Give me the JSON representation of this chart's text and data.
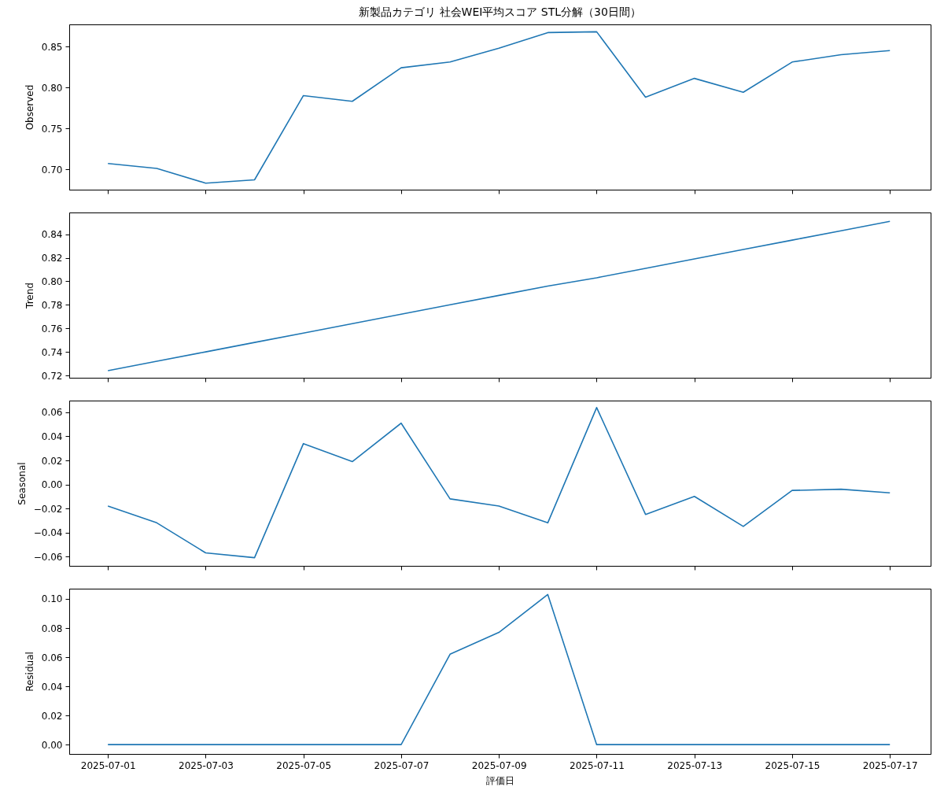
{
  "chart_data": [
    {
      "type": "line",
      "title": "新製品カテゴリ 社会WEI平均スコア STL分解（30日間）",
      "ylabel": "Observed",
      "tick_labels": "y",
      "x": [
        "2025-07-01",
        "2025-07-02",
        "2025-07-03",
        "2025-07-04",
        "2025-07-05",
        "2025-07-06",
        "2025-07-07",
        "2025-07-08",
        "2025-07-09",
        "2025-07-10",
        "2025-07-11",
        "2025-07-12",
        "2025-07-13",
        "2025-07-14",
        "2025-07-15",
        "2025-07-16",
        "2025-07-17"
      ],
      "series": [
        {
          "color": "#1f77b4",
          "values": [
            0.707,
            0.701,
            0.683,
            0.687,
            0.79,
            0.783,
            0.824,
            0.831,
            0.848,
            0.867,
            0.868,
            0.788,
            0.811,
            0.794,
            0.831,
            0.84,
            0.845
          ]
        }
      ],
      "xlim": [
        "2025-06-30T05:00",
        "2025-07-17T20:00"
      ],
      "xticks": [
        "2025-07-01",
        "2025-07-03",
        "2025-07-05",
        "2025-07-07",
        "2025-07-09",
        "2025-07-11",
        "2025-07-13",
        "2025-07-15",
        "2025-07-17"
      ],
      "ylim": [
        0.675,
        0.877
      ],
      "yticks": [
        {
          "value": 0.7,
          "label": "0.70"
        },
        0.75,
        {
          "value": 0.8,
          "label": "0.80"
        },
        0.85
      ]
    },
    {
      "type": "line",
      "ylabel": "Trend",
      "tick_labels": "y",
      "x": [
        "2025-07-01",
        "2025-07-02",
        "2025-07-03",
        "2025-07-04",
        "2025-07-05",
        "2025-07-06",
        "2025-07-07",
        "2025-07-08",
        "2025-07-09",
        "2025-07-10",
        "2025-07-11",
        "2025-07-12",
        "2025-07-13",
        "2025-07-14",
        "2025-07-15",
        "2025-07-16",
        "2025-07-17"
      ],
      "series": [
        {
          "color": "#1f77b4",
          "values": [
            0.724,
            0.732,
            0.74,
            0.748,
            0.756,
            0.764,
            0.772,
            0.78,
            0.788,
            0.796,
            0.803,
            0.811,
            0.819,
            0.827,
            0.835,
            0.843,
            0.851
          ]
        }
      ],
      "xlim": [
        "2025-06-30T05:00",
        "2025-07-17T20:00"
      ],
      "xticks": [
        "2025-07-01",
        "2025-07-03",
        "2025-07-05",
        "2025-07-07",
        "2025-07-09",
        "2025-07-11",
        "2025-07-13",
        "2025-07-15",
        "2025-07-17"
      ],
      "ylim": [
        0.718,
        0.8585
      ],
      "yticks": [
        0.72,
        0.74,
        0.76,
        0.78,
        {
          "value": 0.8,
          "label": "0.80"
        },
        0.82,
        0.84
      ]
    },
    {
      "type": "line",
      "ylabel": "Seasonal",
      "tick_labels": "y",
      "x": [
        "2025-07-01",
        "2025-07-02",
        "2025-07-03",
        "2025-07-04",
        "2025-07-05",
        "2025-07-06",
        "2025-07-07",
        "2025-07-08",
        "2025-07-09",
        "2025-07-10",
        "2025-07-11",
        "2025-07-12",
        "2025-07-13",
        "2025-07-14",
        "2025-07-15",
        "2025-07-16",
        "2025-07-17"
      ],
      "series": [
        {
          "color": "#1f77b4",
          "values": [
            -0.018,
            -0.032,
            -0.057,
            -0.061,
            0.034,
            0.019,
            0.051,
            -0.012,
            -0.018,
            -0.032,
            0.064,
            -0.025,
            -0.01,
            -0.035,
            -0.005,
            -0.004,
            -0.007
          ]
        }
      ],
      "xlim": [
        "2025-06-30T05:00",
        "2025-07-17T20:00"
      ],
      "xticks": [
        "2025-07-01",
        "2025-07-03",
        "2025-07-05",
        "2025-07-07",
        "2025-07-09",
        "2025-07-11",
        "2025-07-13",
        "2025-07-15",
        "2025-07-17"
      ],
      "ylim": [
        -0.0678,
        0.0698
      ],
      "yticks": [
        {
          "value": -0.06,
          "label": "−0.06"
        },
        {
          "value": -0.04,
          "label": "−0.04"
        },
        {
          "value": -0.02,
          "label": "−0.02"
        },
        {
          "value": 0,
          "label": "0.00"
        },
        0.02,
        0.04,
        0.06
      ]
    },
    {
      "type": "line",
      "ylabel": "Residual",
      "xlabel": "評価日",
      "x": [
        "2025-07-01",
        "2025-07-02",
        "2025-07-03",
        "2025-07-04",
        "2025-07-05",
        "2025-07-06",
        "2025-07-07",
        "2025-07-08",
        "2025-07-09",
        "2025-07-10",
        "2025-07-11",
        "2025-07-12",
        "2025-07-13",
        "2025-07-14",
        "2025-07-15",
        "2025-07-16",
        "2025-07-17"
      ],
      "series": [
        {
          "color": "#1f77b4",
          "values": [
            0,
            0,
            0,
            0,
            0,
            0,
            0,
            0.062,
            0.077,
            0.103,
            0,
            0,
            0,
            0,
            0,
            0,
            0
          ]
        }
      ],
      "xlim": [
        "2025-06-30T05:00",
        "2025-07-17T20:00"
      ],
      "xticks": [
        "2025-07-01",
        "2025-07-03",
        "2025-07-05",
        "2025-07-07",
        "2025-07-09",
        "2025-07-11",
        "2025-07-13",
        "2025-07-15",
        "2025-07-17"
      ],
      "ylim": [
        -0.0064,
        0.107
      ],
      "yticks": [
        {
          "value": 0,
          "label": "0.00"
        },
        0.02,
        0.04,
        0.06,
        0.08,
        {
          "value": 0.1,
          "label": "0.10"
        }
      ]
    }
  ]
}
